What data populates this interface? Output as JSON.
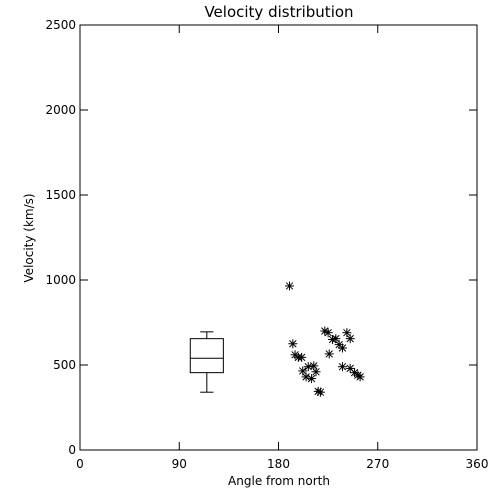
{
  "chart_data": {
    "type": "scatter",
    "title": "Velocity distribution",
    "xlabel": "Angle from north",
    "ylabel": "Velocity (km/s)",
    "xlim": [
      0,
      360
    ],
    "ylim": [
      0,
      2500
    ],
    "x_ticks": [
      0,
      90,
      180,
      270,
      360
    ],
    "y_ticks": [
      0,
      500,
      1000,
      1500,
      2000,
      2500
    ],
    "x_tick_labels": [
      "0",
      "90",
      "180",
      "270",
      "360"
    ],
    "y_tick_labels": [
      "0",
      "500",
      "1000",
      "1500",
      "2000",
      "2500"
    ],
    "grid": false,
    "legend": "none",
    "marker": "asterisk",
    "colors": {
      "axis": "#000000",
      "marks": "#000000",
      "background": "#ffffff"
    },
    "points": [
      {
        "x": 190,
        "y": 965
      },
      {
        "x": 193,
        "y": 625
      },
      {
        "x": 195,
        "y": 560
      },
      {
        "x": 198,
        "y": 545
      },
      {
        "x": 201,
        "y": 545
      },
      {
        "x": 202,
        "y": 465
      },
      {
        "x": 205,
        "y": 430
      },
      {
        "x": 207,
        "y": 490
      },
      {
        "x": 210,
        "y": 420
      },
      {
        "x": 212,
        "y": 495
      },
      {
        "x": 214,
        "y": 460
      },
      {
        "x": 216,
        "y": 345
      },
      {
        "x": 218,
        "y": 340
      },
      {
        "x": 222,
        "y": 700
      },
      {
        "x": 225,
        "y": 690
      },
      {
        "x": 226,
        "y": 565
      },
      {
        "x": 229,
        "y": 650
      },
      {
        "x": 232,
        "y": 655
      },
      {
        "x": 235,
        "y": 620
      },
      {
        "x": 238,
        "y": 600
      },
      {
        "x": 238,
        "y": 490
      },
      {
        "x": 242,
        "y": 690
      },
      {
        "x": 245,
        "y": 655
      },
      {
        "x": 245,
        "y": 480
      },
      {
        "x": 249,
        "y": 455
      },
      {
        "x": 252,
        "y": 440
      },
      {
        "x": 254,
        "y": 430
      }
    ],
    "boxplot": {
      "x": 115,
      "min": 340,
      "q1": 455,
      "median": 540,
      "q3": 655,
      "max": 695,
      "half_width_data": 15
    }
  }
}
